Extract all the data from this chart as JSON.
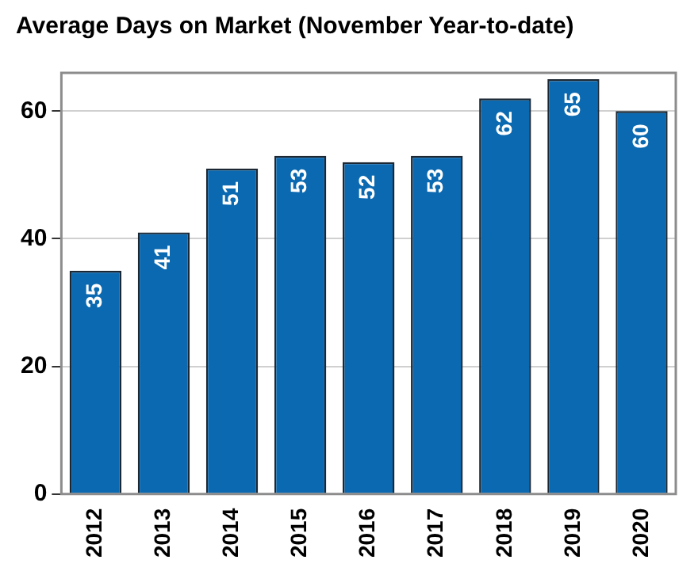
{
  "chart_data": {
    "type": "bar",
    "title": "Average Days on Market (November Year-to-date)",
    "categories": [
      "2012",
      "2013",
      "2014",
      "2015",
      "2016",
      "2017",
      "2018",
      "2019",
      "2020"
    ],
    "values": [
      35,
      41,
      51,
      53,
      52,
      53,
      62,
      65,
      60
    ],
    "color": "#0a69b0",
    "ylim": [
      0,
      66
    ],
    "yticks": [
      0,
      20,
      40,
      60
    ],
    "grid": "y",
    "data_labels": true,
    "legend": false
  }
}
